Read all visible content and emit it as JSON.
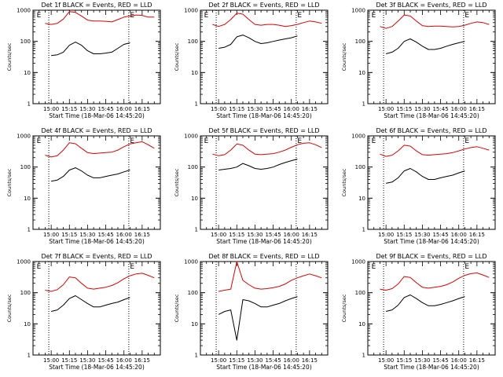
{
  "figure": {
    "x_axis_title": "Start Time (18-Mar-06 14:45:20)",
    "y_axis_title": "Counts/sec"
  },
  "chart_data": [
    {
      "type": "line",
      "title": "Det 1f BLACK = Events, RED = LLD",
      "xlabel": "Start Time (18-Mar-06 14:45:20)",
      "ylabel": "Counts/sec",
      "x_ticks": [
        "15:00",
        "15:15",
        "15:30",
        "15:45",
        "16:00",
        "16:15"
      ],
      "y_ticks": [
        "1",
        "10",
        "100",
        "1000"
      ],
      "ylim": [
        1,
        1000
      ],
      "yscale": "log",
      "markers": [
        {
          "label": "E",
          "x": "14:48"
        },
        {
          "label": "E",
          "x": "16:05"
        }
      ],
      "x": [
        "14:55",
        "15:00",
        "15:05",
        "15:10",
        "15:15",
        "15:20",
        "15:25",
        "15:30",
        "15:35",
        "15:40",
        "15:45",
        "15:50",
        "15:55",
        "16:00",
        "16:05",
        "16:10",
        "16:15",
        "16:20",
        "16:25"
      ],
      "series": [
        {
          "name": "BLACK = Events",
          "color": "#000000",
          "values": [
            null,
            35,
            37,
            45,
            75,
            95,
            75,
            50,
            40,
            40,
            42,
            45,
            60,
            80,
            90,
            null,
            null,
            null,
            null
          ]
        },
        {
          "name": "RED = LLD",
          "color": "#e00000",
          "values": [
            380,
            350,
            380,
            520,
            900,
            850,
            650,
            480,
            450,
            450,
            440,
            420,
            500,
            600,
            650,
            700,
            680,
            600,
            600
          ]
        }
      ]
    },
    {
      "type": "line",
      "title": "Det 2f BLACK = Events, RED = LLD",
      "xlabel": "Start Time (18-Mar-06 14:45:20)",
      "ylabel": "Counts/sec",
      "x_ticks": [
        "15:00",
        "15:15",
        "15:30",
        "15:45",
        "16:00",
        "16:15"
      ],
      "y_ticks": [
        "1",
        "10",
        "100",
        "1000"
      ],
      "ylim": [
        1,
        1000
      ],
      "yscale": "log",
      "markers": [
        {
          "label": "E",
          "x": "14:48"
        },
        {
          "label": "E",
          "x": "16:05"
        }
      ],
      "x": [
        "14:55",
        "15:00",
        "15:05",
        "15:10",
        "15:15",
        "15:20",
        "15:25",
        "15:30",
        "15:35",
        "15:40",
        "15:45",
        "15:50",
        "15:55",
        "16:00",
        "16:05",
        "16:10",
        "16:15",
        "16:20",
        "16:25"
      ],
      "series": [
        {
          "name": "BLACK = Events",
          "color": "#000000",
          "values": [
            null,
            60,
            65,
            80,
            140,
            160,
            130,
            100,
            85,
            90,
            100,
            110,
            120,
            130,
            150,
            null,
            null,
            null,
            null
          ]
        },
        {
          "name": "RED = LLD",
          "color": "#e00000",
          "values": [
            350,
            300,
            350,
            500,
            800,
            750,
            500,
            350,
            330,
            350,
            350,
            330,
            300,
            320,
            350,
            400,
            450,
            420,
            380
          ]
        }
      ]
    },
    {
      "type": "line",
      "title": "Det 3f BLACK = Events, RED = LLD",
      "xlabel": "Start Time (18-Mar-06 14:45:20)",
      "ylabel": "Counts/sec",
      "x_ticks": [
        "15:00",
        "15:15",
        "15:30",
        "15:45",
        "16:00",
        "16:15"
      ],
      "y_ticks": [
        "1",
        "10",
        "100",
        "1000"
      ],
      "ylim": [
        1,
        1000
      ],
      "yscale": "log",
      "markers": [
        {
          "label": "E",
          "x": "14:48"
        },
        {
          "label": "E",
          "x": "16:05"
        }
      ],
      "x": [
        "14:55",
        "15:00",
        "15:05",
        "15:10",
        "15:15",
        "15:20",
        "15:25",
        "15:30",
        "15:35",
        "15:40",
        "15:45",
        "15:50",
        "15:55",
        "16:00",
        "16:05",
        "16:10",
        "16:15",
        "16:20",
        "16:25"
      ],
      "series": [
        {
          "name": "BLACK = Events",
          "color": "#000000",
          "values": [
            null,
            40,
            45,
            60,
            100,
            120,
            95,
            70,
            55,
            55,
            60,
            70,
            80,
            90,
            100,
            null,
            null,
            null,
            null
          ]
        },
        {
          "name": "RED = LLD",
          "color": "#e00000",
          "values": [
            300,
            260,
            300,
            450,
            700,
            650,
            450,
            320,
            300,
            310,
            310,
            300,
            290,
            300,
            330,
            380,
            420,
            400,
            350
          ]
        }
      ]
    },
    {
      "type": "line",
      "title": "Det 4f BLACK = Events, RED = LLD",
      "xlabel": "Start Time (18-Mar-06 14:45:20)",
      "ylabel": "Counts/sec",
      "x_ticks": [
        "15:00",
        "15:15",
        "15:30",
        "15:45",
        "16:00",
        "16:15"
      ],
      "y_ticks": [
        "1",
        "10",
        "100",
        "1000"
      ],
      "ylim": [
        1,
        1000
      ],
      "yscale": "log",
      "markers": [
        {
          "label": "E",
          "x": "14:48"
        },
        {
          "label": "E",
          "x": "16:05"
        }
      ],
      "x": [
        "14:55",
        "15:00",
        "15:05",
        "15:10",
        "15:15",
        "15:20",
        "15:25",
        "15:30",
        "15:35",
        "15:40",
        "15:45",
        "15:50",
        "15:55",
        "16:00",
        "16:05",
        "16:10",
        "16:15",
        "16:20",
        "16:25"
      ],
      "series": [
        {
          "name": "BLACK = Events",
          "color": "#000000",
          "values": [
            null,
            35,
            38,
            50,
            80,
            95,
            75,
            55,
            45,
            45,
            50,
            55,
            60,
            70,
            80,
            null,
            null,
            null,
            null
          ]
        },
        {
          "name": "RED = LLD",
          "color": "#e00000",
          "values": [
            240,
            210,
            230,
            350,
            600,
            560,
            400,
            290,
            270,
            280,
            290,
            300,
            350,
            450,
            550,
            600,
            650,
            520,
            400
          ]
        }
      ]
    },
    {
      "type": "line",
      "title": "Det 5f BLACK = Events, RED = LLD",
      "xlabel": "Start Time (18-Mar-06 14:45:20)",
      "ylabel": "Counts/sec",
      "x_ticks": [
        "15:00",
        "15:15",
        "15:30",
        "15:45",
        "16:00",
        "16:15"
      ],
      "y_ticks": [
        "1",
        "10",
        "100",
        "1000"
      ],
      "ylim": [
        1,
        1000
      ],
      "yscale": "log",
      "markers": [
        {
          "label": "E",
          "x": "14:48"
        },
        {
          "label": "E",
          "x": "16:05"
        }
      ],
      "x": [
        "14:55",
        "15:00",
        "15:05",
        "15:10",
        "15:15",
        "15:20",
        "15:25",
        "15:30",
        "15:35",
        "15:40",
        "15:45",
        "15:50",
        "15:55",
        "16:00",
        "16:05",
        "16:10",
        "16:15",
        "16:20",
        "16:25"
      ],
      "series": [
        {
          "name": "BLACK = Events",
          "color": "#000000",
          "values": [
            null,
            80,
            85,
            90,
            100,
            130,
            110,
            90,
            85,
            90,
            100,
            120,
            140,
            160,
            180,
            null,
            null,
            null,
            null
          ]
        },
        {
          "name": "RED = LLD",
          "color": "#e00000",
          "values": [
            260,
            230,
            250,
            350,
            550,
            500,
            350,
            260,
            250,
            260,
            270,
            300,
            350,
            430,
            520,
            580,
            600,
            520,
            420
          ]
        }
      ]
    },
    {
      "type": "line",
      "title": "Det 6f BLACK = Events, RED = LLD",
      "xlabel": "Start Time (18-Mar-06 14:45:20)",
      "ylabel": "Counts/sec",
      "x_ticks": [
        "15:00",
        "15:15",
        "15:30",
        "15:45",
        "16:00",
        "16:15"
      ],
      "y_ticks": [
        "1",
        "10",
        "100",
        "1000"
      ],
      "ylim": [
        1,
        1000
      ],
      "yscale": "log",
      "markers": [
        {
          "label": "E",
          "x": "14:48"
        },
        {
          "label": "E",
          "x": "16:05"
        }
      ],
      "x": [
        "14:55",
        "15:00",
        "15:05",
        "15:10",
        "15:15",
        "15:20",
        "15:25",
        "15:30",
        "15:35",
        "15:40",
        "15:45",
        "15:50",
        "15:55",
        "16:00",
        "16:05",
        "16:10",
        "16:15",
        "16:20",
        "16:25"
      ],
      "series": [
        {
          "name": "BLACK = Events",
          "color": "#000000",
          "values": [
            null,
            30,
            33,
            45,
            75,
            90,
            70,
            50,
            40,
            40,
            45,
            50,
            55,
            65,
            75,
            null,
            null,
            null,
            null
          ]
        },
        {
          "name": "RED = LLD",
          "color": "#e00000",
          "values": [
            260,
            220,
            240,
            330,
            500,
            470,
            330,
            250,
            240,
            250,
            260,
            270,
            290,
            330,
            380,
            420,
            450,
            400,
            350
          ]
        }
      ]
    },
    {
      "type": "line",
      "title": "Det 7f BLACK = Events, RED = LLD",
      "xlabel": "Start Time (18-Mar-06 14:45:20)",
      "ylabel": "Counts/sec",
      "x_ticks": [
        "15:00",
        "15:15",
        "15:30",
        "15:45",
        "16:00",
        "16:15"
      ],
      "y_ticks": [
        "1",
        "10",
        "100",
        "1000"
      ],
      "ylim": [
        1,
        1000
      ],
      "yscale": "log",
      "markers": [
        {
          "label": "E",
          "x": "14:48"
        },
        {
          "label": "E",
          "x": "16:05"
        }
      ],
      "x": [
        "14:55",
        "15:00",
        "15:05",
        "15:10",
        "15:15",
        "15:20",
        "15:25",
        "15:30",
        "15:35",
        "15:40",
        "15:45",
        "15:50",
        "15:55",
        "16:00",
        "16:05",
        "16:10",
        "16:15",
        "16:20",
        "16:25"
      ],
      "series": [
        {
          "name": "BLACK = Events",
          "color": "#000000",
          "values": [
            null,
            25,
            28,
            40,
            65,
            80,
            60,
            45,
            35,
            35,
            40,
            45,
            50,
            60,
            70,
            null,
            null,
            null,
            null
          ]
        },
        {
          "name": "RED = LLD",
          "color": "#e00000",
          "values": [
            120,
            110,
            125,
            180,
            320,
            300,
            200,
            140,
            130,
            140,
            150,
            170,
            210,
            280,
            350,
            400,
            420,
            360,
            300
          ]
        }
      ]
    },
    {
      "type": "line",
      "title": "Det 8f BLACK = Events, RED = LLD",
      "xlabel": "Start Time (18-Mar-06 14:45:20)",
      "ylabel": "Counts/sec",
      "x_ticks": [
        "15:00",
        "15:15",
        "15:30",
        "15:45",
        "16:00",
        "16:15"
      ],
      "y_ticks": [
        "1",
        "10",
        "100",
        "1000"
      ],
      "ylim": [
        1,
        1000
      ],
      "yscale": "log",
      "x": [
        "14:55",
        "15:00",
        "15:05",
        "15:10",
        "15:15",
        "15:20",
        "15:25",
        "15:30",
        "15:35",
        "15:40",
        "15:45",
        "15:50",
        "15:55",
        "16:00",
        "16:05",
        "16:10",
        "16:15",
        "16:20",
        "16:25"
      ],
      "series": [
        {
          "name": "BLACK = Events",
          "color": "#000000",
          "values": [
            null,
            20,
            25,
            28,
            3,
            60,
            55,
            45,
            35,
            35,
            40,
            45,
            55,
            65,
            75,
            null,
            null,
            null,
            null
          ]
        },
        {
          "name": "RED = LLD",
          "color": "#e00000",
          "values": [
            null,
            110,
            120,
            130,
            1000,
            250,
            180,
            140,
            130,
            135,
            145,
            160,
            190,
            250,
            300,
            350,
            400,
            350,
            300
          ]
        }
      ]
    },
    {
      "type": "line",
      "title": "Det 9f BLACK = Events, RED = LLD",
      "xlabel": "Start Time (18-Mar-06 14:45:20)",
      "ylabel": "Counts/sec",
      "x_ticks": [
        "15:00",
        "15:15",
        "15:30",
        "15:45",
        "16:00",
        "16:15"
      ],
      "y_ticks": [
        "1",
        "10",
        "100",
        "1000"
      ],
      "ylim": [
        1,
        1000
      ],
      "yscale": "log",
      "markers": [
        {
          "label": "E",
          "x": "14:48"
        },
        {
          "label": "E",
          "x": "16:05"
        }
      ],
      "x": [
        "14:55",
        "15:00",
        "15:05",
        "15:10",
        "15:15",
        "15:20",
        "15:25",
        "15:30",
        "15:35",
        "15:40",
        "15:45",
        "15:50",
        "15:55",
        "16:00",
        "16:05",
        "16:10",
        "16:15",
        "16:20",
        "16:25"
      ],
      "series": [
        {
          "name": "BLACK = Events",
          "color": "#000000",
          "values": [
            null,
            25,
            28,
            40,
            70,
            85,
            65,
            48,
            38,
            38,
            42,
            48,
            55,
            65,
            75,
            null,
            null,
            null,
            null
          ]
        },
        {
          "name": "RED = LLD",
          "color": "#e00000",
          "values": [
            130,
            120,
            135,
            190,
            330,
            310,
            210,
            150,
            140,
            150,
            160,
            180,
            220,
            290,
            360,
            410,
            430,
            370,
            310
          ]
        }
      ]
    }
  ]
}
